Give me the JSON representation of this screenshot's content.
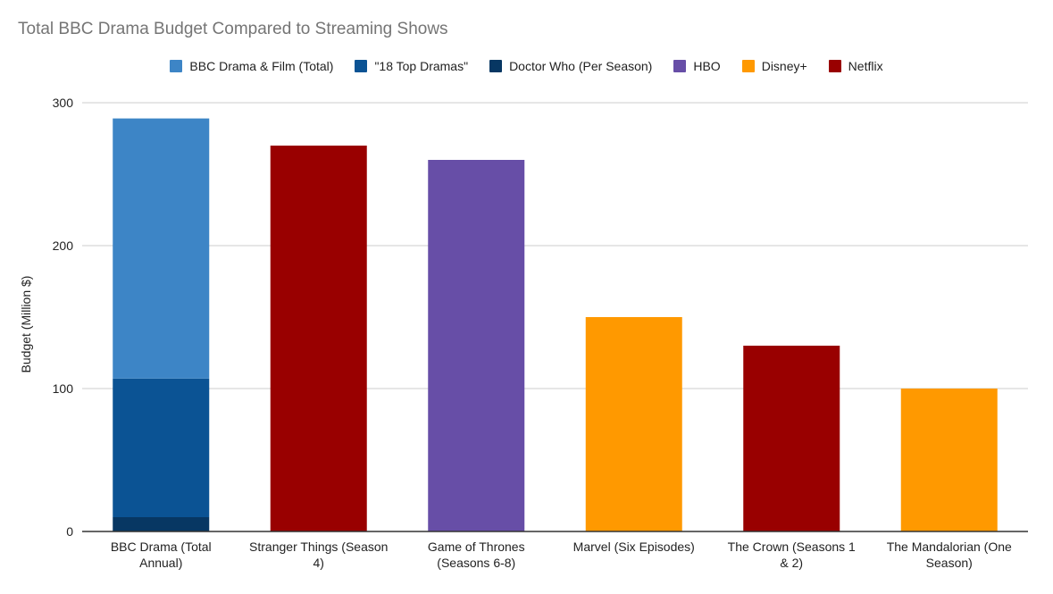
{
  "chart_data": {
    "type": "bar",
    "stacked": true,
    "title": "Total BBC Drama Budget Compared to Streaming Shows",
    "xlabel": "",
    "ylabel": "Budget (Million $)",
    "ylim": [
      0,
      300
    ],
    "yticks": [
      0,
      100,
      200,
      300
    ],
    "grid": true,
    "legend_position": "top",
    "legend": [
      {
        "name": "BBC Drama & Film (Total)",
        "color": "#3d85c6"
      },
      {
        "name": "\"18 Top Dramas\"",
        "color": "#0b5394"
      },
      {
        "name": "Doctor Who (Per Season)",
        "color": "#073763"
      },
      {
        "name": "HBO",
        "color": "#674ea7"
      },
      {
        "name": "Disney+",
        "color": "#ff9900"
      },
      {
        "name": "Netflix",
        "color": "#990000"
      }
    ],
    "categories": [
      [
        "BBC Drama (Total",
        "Annual)"
      ],
      [
        "Stranger Things (Season",
        "4)"
      ],
      [
        "Game of Thrones",
        "(Seasons 6-8)"
      ],
      [
        "Marvel (Six Episodes)"
      ],
      [
        "The Crown (Seasons 1",
        "& 2)"
      ],
      [
        "The Mandalorian (One",
        "Season)"
      ]
    ],
    "bars": [
      {
        "segments": [
          {
            "series": "Doctor Who (Per Season)",
            "value": 10,
            "color": "#073763"
          },
          {
            "series": "\"18 Top Dramas\"",
            "value": 97,
            "color": "#0b5394"
          },
          {
            "series": "BBC Drama & Film (Total)",
            "value": 182,
            "color": "#3d85c6"
          }
        ]
      },
      {
        "segments": [
          {
            "series": "Netflix",
            "value": 270,
            "color": "#990000"
          }
        ]
      },
      {
        "segments": [
          {
            "series": "HBO",
            "value": 260,
            "color": "#674ea7"
          }
        ]
      },
      {
        "segments": [
          {
            "series": "Disney+",
            "value": 150,
            "color": "#ff9900"
          }
        ]
      },
      {
        "segments": [
          {
            "series": "Netflix",
            "value": 130,
            "color": "#990000"
          }
        ]
      },
      {
        "segments": [
          {
            "series": "Disney+",
            "value": 100,
            "color": "#ff9900"
          }
        ]
      }
    ]
  }
}
